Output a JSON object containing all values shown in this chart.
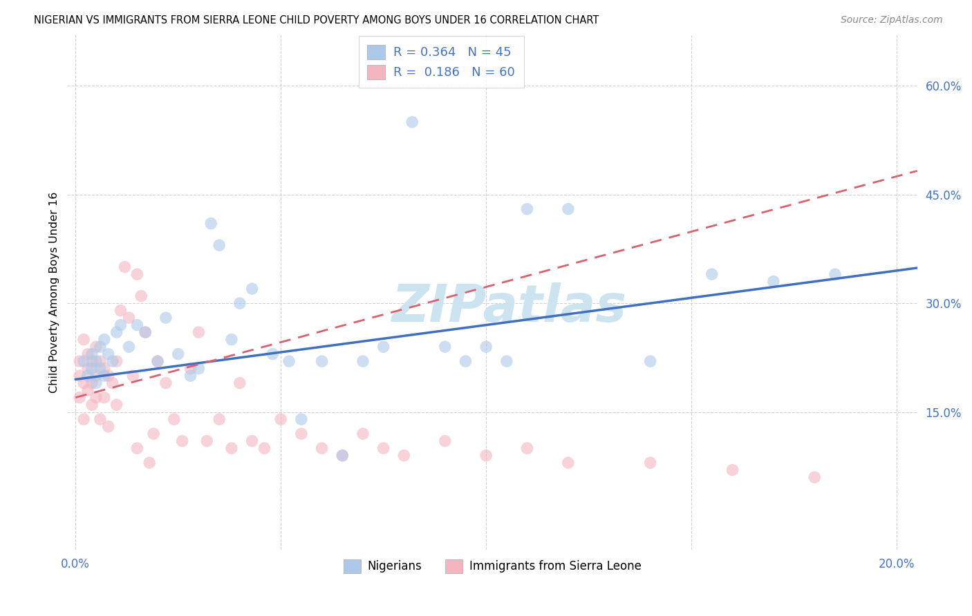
{
  "title": "NIGERIAN VS IMMIGRANTS FROM SIERRA LEONE CHILD POVERTY AMONG BOYS UNDER 16 CORRELATION CHART",
  "source": "Source: ZipAtlas.com",
  "ylabel": "Child Poverty Among Boys Under 16",
  "xlim": [
    -0.002,
    0.205
  ],
  "ylim": [
    -0.04,
    0.67
  ],
  "xticks": [
    0.0,
    0.05,
    0.1,
    0.15,
    0.2
  ],
  "xtick_labels": [
    "0.0%",
    "",
    "",
    "",
    "20.0%"
  ],
  "yticks": [
    0.15,
    0.3,
    0.45,
    0.6
  ],
  "ytick_labels": [
    "15.0%",
    "30.0%",
    "45.0%",
    "60.0%"
  ],
  "nigerian_R": 0.364,
  "nigerian_N": 45,
  "sierra_leone_R": 0.186,
  "sierra_leone_N": 60,
  "nigerian_color": "#adc9e9",
  "sierra_leone_color": "#f4b5c0",
  "nigerian_line_color": "#3f6fbf",
  "sierra_leone_line_color": "#d9606e",
  "legend_R_color": "#4472c4",
  "watermark_color": "#cce4f0",
  "grid_color": "#d0d0d0",
  "marker_size": 160,
  "marker_alpha": 0.6,
  "nigerian_x": [
    0.002,
    0.003,
    0.004,
    0.004,
    0.005,
    0.005,
    0.006,
    0.006,
    0.007,
    0.007,
    0.008,
    0.009,
    0.01,
    0.011,
    0.013,
    0.015,
    0.017,
    0.02,
    0.022,
    0.025,
    0.028,
    0.03,
    0.033,
    0.035,
    0.038,
    0.04,
    0.043,
    0.048,
    0.052,
    0.055,
    0.06,
    0.065,
    0.07,
    0.075,
    0.082,
    0.09,
    0.095,
    0.1,
    0.105,
    0.11,
    0.12,
    0.14,
    0.155,
    0.17,
    0.185
  ],
  "nigerian_y": [
    0.22,
    0.2,
    0.21,
    0.23,
    0.19,
    0.22,
    0.24,
    0.21,
    0.2,
    0.25,
    0.23,
    0.22,
    0.26,
    0.27,
    0.24,
    0.27,
    0.26,
    0.22,
    0.28,
    0.23,
    0.2,
    0.21,
    0.41,
    0.38,
    0.25,
    0.3,
    0.32,
    0.23,
    0.22,
    0.14,
    0.22,
    0.09,
    0.22,
    0.24,
    0.55,
    0.24,
    0.22,
    0.24,
    0.22,
    0.43,
    0.43,
    0.22,
    0.34,
    0.33,
    0.34
  ],
  "sierra_leone_x": [
    0.001,
    0.001,
    0.001,
    0.002,
    0.002,
    0.002,
    0.003,
    0.003,
    0.003,
    0.004,
    0.004,
    0.004,
    0.005,
    0.005,
    0.005,
    0.006,
    0.006,
    0.007,
    0.007,
    0.008,
    0.008,
    0.009,
    0.01,
    0.01,
    0.011,
    0.012,
    0.013,
    0.014,
    0.015,
    0.015,
    0.016,
    0.017,
    0.018,
    0.019,
    0.02,
    0.022,
    0.024,
    0.026,
    0.028,
    0.03,
    0.032,
    0.035,
    0.038,
    0.04,
    0.043,
    0.046,
    0.05,
    0.055,
    0.06,
    0.065,
    0.07,
    0.075,
    0.08,
    0.09,
    0.1,
    0.11,
    0.12,
    0.14,
    0.16,
    0.18
  ],
  "sierra_leone_y": [
    0.2,
    0.17,
    0.22,
    0.25,
    0.19,
    0.14,
    0.21,
    0.18,
    0.23,
    0.22,
    0.16,
    0.19,
    0.24,
    0.2,
    0.17,
    0.22,
    0.14,
    0.21,
    0.17,
    0.2,
    0.13,
    0.19,
    0.22,
    0.16,
    0.29,
    0.35,
    0.28,
    0.2,
    0.34,
    0.1,
    0.31,
    0.26,
    0.08,
    0.12,
    0.22,
    0.19,
    0.14,
    0.11,
    0.21,
    0.26,
    0.11,
    0.14,
    0.1,
    0.19,
    0.11,
    0.1,
    0.14,
    0.12,
    0.1,
    0.09,
    0.12,
    0.1,
    0.09,
    0.11,
    0.09,
    0.1,
    0.08,
    0.08,
    0.07,
    0.06
  ]
}
